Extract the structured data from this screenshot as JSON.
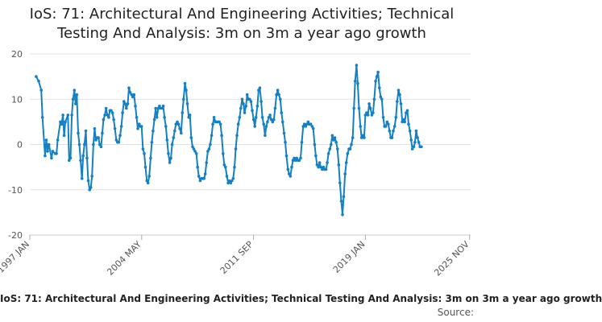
{
  "chart_data": {
    "type": "line",
    "title_line1": "IoS: 71: Architectural And Engineering Activities; Technical",
    "title_line2": "Testing And Analysis: 3m on 3m a year ago growth",
    "xlabel": "",
    "ylabel": "",
    "ylim": [
      -20,
      20
    ],
    "y_ticks": [
      -20,
      -10,
      0,
      10,
      20
    ],
    "x_range": [
      1997.0,
      2025.9
    ],
    "x_tick_labels": [
      "1997 JAN",
      "2004 MAY",
      "2011 SEP",
      "2019 JAN",
      "2025 NOV"
    ],
    "x_tick_positions": [
      1997.0,
      2004.333,
      2011.667,
      2019.0,
      2025.833
    ],
    "grid": true,
    "legend_position": "bottom",
    "series": [
      {
        "name": "IoS: 71: Architectural And Engineering Activities; Technical Testing And Analysis: 3m on 3m a year ago growth",
        "color": "#1580c2",
        "points": [
          [
            1997.42,
            15.0
          ],
          [
            1997.58,
            14.0
          ],
          [
            1997.75,
            12.0
          ],
          [
            1997.83,
            6.0
          ],
          [
            1998.0,
            -2.5
          ],
          [
            1998.08,
            1.0
          ],
          [
            1998.17,
            -1.5
          ],
          [
            1998.25,
            0.0
          ],
          [
            1998.42,
            -3.0
          ],
          [
            1998.5,
            -1.5
          ],
          [
            1998.67,
            -2.0
          ],
          [
            1998.75,
            -2.0
          ],
          [
            1998.83,
            1.0
          ],
          [
            1999.0,
            5.0
          ],
          [
            1999.08,
            4.5
          ],
          [
            1999.17,
            6.5
          ],
          [
            1999.25,
            2.0
          ],
          [
            1999.33,
            5.0
          ],
          [
            1999.5,
            6.5
          ],
          [
            1999.58,
            -3.5
          ],
          [
            1999.67,
            -3.0
          ],
          [
            1999.75,
            6.5
          ],
          [
            1999.83,
            10.0
          ],
          [
            1999.92,
            12.0
          ],
          [
            2000.0,
            9.0
          ],
          [
            2000.08,
            11.0
          ],
          [
            2000.17,
            2.5
          ],
          [
            2000.25,
            0.0
          ],
          [
            2000.33,
            -3.5
          ],
          [
            2000.42,
            -7.5
          ],
          [
            2000.5,
            -2.5
          ],
          [
            2000.58,
            0.0
          ],
          [
            2000.67,
            3.0
          ],
          [
            2000.75,
            -3.0
          ],
          [
            2000.83,
            -8.0
          ],
          [
            2000.92,
            -10.0
          ],
          [
            2001.0,
            -9.5
          ],
          [
            2001.08,
            -7.0
          ],
          [
            2001.17,
            0.0
          ],
          [
            2001.25,
            3.5
          ],
          [
            2001.33,
            1.0
          ],
          [
            2001.42,
            1.5
          ],
          [
            2001.5,
            1.5
          ],
          [
            2001.58,
            0.0
          ],
          [
            2001.67,
            -0.5
          ],
          [
            2001.75,
            2.5
          ],
          [
            2001.83,
            5.5
          ],
          [
            2001.92,
            6.5
          ],
          [
            2002.0,
            8.0
          ],
          [
            2002.08,
            6.5
          ],
          [
            2002.17,
            6.0
          ],
          [
            2002.25,
            7.5
          ],
          [
            2002.33,
            7.5
          ],
          [
            2002.42,
            7.0
          ],
          [
            2002.5,
            5.5
          ],
          [
            2002.58,
            3.5
          ],
          [
            2002.67,
            1.0
          ],
          [
            2002.75,
            0.5
          ],
          [
            2002.83,
            0.5
          ],
          [
            2002.92,
            2.0
          ],
          [
            2003.0,
            4.0
          ],
          [
            2003.08,
            7.0
          ],
          [
            2003.17,
            9.5
          ],
          [
            2003.25,
            9.0
          ],
          [
            2003.33,
            8.0
          ],
          [
            2003.42,
            9.0
          ],
          [
            2003.5,
            12.5
          ],
          [
            2003.58,
            11.5
          ],
          [
            2003.67,
            11.0
          ],
          [
            2003.75,
            10.5
          ],
          [
            2003.83,
            11.0
          ],
          [
            2003.92,
            8.5
          ],
          [
            2004.0,
            6.0
          ],
          [
            2004.08,
            3.5
          ],
          [
            2004.17,
            4.5
          ],
          [
            2004.25,
            4.0
          ],
          [
            2004.33,
            4.0
          ],
          [
            2004.42,
            -1.0
          ],
          [
            2004.5,
            -2.0
          ],
          [
            2004.58,
            -5.0
          ],
          [
            2004.67,
            -8.0
          ],
          [
            2004.75,
            -8.5
          ],
          [
            2004.83,
            -7.0
          ],
          [
            2004.92,
            -3.0
          ],
          [
            2005.0,
            0.5
          ],
          [
            2005.08,
            3.0
          ],
          [
            2005.17,
            5.5
          ],
          [
            2005.25,
            8.0
          ],
          [
            2005.33,
            6.0
          ],
          [
            2005.42,
            8.0
          ],
          [
            2005.5,
            8.5
          ],
          [
            2005.58,
            8.0
          ],
          [
            2005.67,
            8.0
          ],
          [
            2005.75,
            8.5
          ],
          [
            2005.83,
            6.0
          ],
          [
            2005.92,
            4.0
          ],
          [
            2006.0,
            1.0
          ],
          [
            2006.08,
            -2.0
          ],
          [
            2006.17,
            -4.0
          ],
          [
            2006.25,
            -3.0
          ],
          [
            2006.33,
            0.0
          ],
          [
            2006.42,
            1.5
          ],
          [
            2006.5,
            3.0
          ],
          [
            2006.58,
            4.5
          ],
          [
            2006.67,
            5.0
          ],
          [
            2006.75,
            4.5
          ],
          [
            2006.83,
            3.5
          ],
          [
            2006.92,
            2.5
          ],
          [
            2007.0,
            7.0
          ],
          [
            2007.08,
            10.0
          ],
          [
            2007.17,
            13.5
          ],
          [
            2007.25,
            12.0
          ],
          [
            2007.33,
            9.0
          ],
          [
            2007.42,
            6.0
          ],
          [
            2007.5,
            6.5
          ],
          [
            2007.58,
            1.5
          ],
          [
            2007.67,
            -0.5
          ],
          [
            2007.75,
            -1.0
          ],
          [
            2007.83,
            -1.5
          ],
          [
            2007.92,
            -2.0
          ],
          [
            2008.0,
            -5.0
          ],
          [
            2008.08,
            -7.0
          ],
          [
            2008.17,
            -8.0
          ],
          [
            2008.25,
            -7.5
          ],
          [
            2008.33,
            -7.5
          ],
          [
            2008.42,
            -7.5
          ],
          [
            2008.5,
            -6.5
          ],
          [
            2008.58,
            -4.0
          ],
          [
            2008.67,
            -1.5
          ],
          [
            2008.75,
            -1.0
          ],
          [
            2008.83,
            0.0
          ],
          [
            2008.92,
            2.0
          ],
          [
            2009.0,
            4.5
          ],
          [
            2009.08,
            6.0
          ],
          [
            2009.17,
            5.0
          ],
          [
            2009.25,
            5.0
          ],
          [
            2009.33,
            5.0
          ],
          [
            2009.42,
            5.0
          ],
          [
            2009.5,
            4.5
          ],
          [
            2009.58,
            2.0
          ],
          [
            2009.67,
            -2.0
          ],
          [
            2009.75,
            -4.5
          ],
          [
            2009.83,
            -5.0
          ],
          [
            2009.92,
            -7.0
          ],
          [
            2010.0,
            -8.5
          ],
          [
            2010.08,
            -8.0
          ],
          [
            2010.17,
            -8.5
          ],
          [
            2010.25,
            -8.0
          ],
          [
            2010.33,
            -7.5
          ],
          [
            2010.42,
            -5.0
          ],
          [
            2010.5,
            -1.0
          ],
          [
            2010.58,
            2.0
          ],
          [
            2010.67,
            4.5
          ],
          [
            2010.75,
            6.0
          ],
          [
            2010.83,
            8.0
          ],
          [
            2010.92,
            10.0
          ],
          [
            2011.0,
            9.0
          ],
          [
            2011.08,
            7.0
          ],
          [
            2011.17,
            8.5
          ],
          [
            2011.25,
            11.0
          ],
          [
            2011.33,
            10.0
          ],
          [
            2011.42,
            10.0
          ],
          [
            2011.5,
            9.5
          ],
          [
            2011.58,
            7.5
          ],
          [
            2011.67,
            5.5
          ],
          [
            2011.75,
            4.0
          ],
          [
            2011.83,
            6.0
          ],
          [
            2011.92,
            8.5
          ],
          [
            2012.0,
            12.0
          ],
          [
            2012.08,
            12.5
          ],
          [
            2012.17,
            9.5
          ],
          [
            2012.25,
            6.0
          ],
          [
            2012.33,
            4.5
          ],
          [
            2012.42,
            2.0
          ],
          [
            2012.5,
            4.0
          ],
          [
            2012.58,
            5.0
          ],
          [
            2012.67,
            6.0
          ],
          [
            2012.75,
            6.5
          ],
          [
            2012.83,
            5.5
          ],
          [
            2012.92,
            5.0
          ],
          [
            2013.0,
            5.5
          ],
          [
            2013.08,
            8.0
          ],
          [
            2013.17,
            11.0
          ],
          [
            2013.25,
            12.0
          ],
          [
            2013.33,
            11.0
          ],
          [
            2013.42,
            10.0
          ],
          [
            2013.5,
            7.0
          ],
          [
            2013.58,
            5.0
          ],
          [
            2013.67,
            2.5
          ],
          [
            2013.75,
            0.5
          ],
          [
            2013.83,
            -2.5
          ],
          [
            2013.92,
            -5.5
          ],
          [
            2014.0,
            -6.5
          ],
          [
            2014.08,
            -7.0
          ],
          [
            2014.17,
            -5.0
          ],
          [
            2014.25,
            -3.5
          ],
          [
            2014.33,
            -3.0
          ],
          [
            2014.42,
            -3.5
          ],
          [
            2014.5,
            -3.0
          ],
          [
            2014.58,
            -3.5
          ],
          [
            2014.67,
            -3.5
          ],
          [
            2014.75,
            -3.0
          ],
          [
            2014.83,
            0.5
          ],
          [
            2014.92,
            4.0
          ],
          [
            2015.0,
            4.5
          ],
          [
            2015.08,
            4.0
          ],
          [
            2015.17,
            4.5
          ],
          [
            2015.25,
            5.0
          ],
          [
            2015.33,
            4.5
          ],
          [
            2015.42,
            4.5
          ],
          [
            2015.5,
            4.0
          ],
          [
            2015.58,
            3.5
          ],
          [
            2015.67,
            0.0
          ],
          [
            2015.75,
            -2.5
          ],
          [
            2015.83,
            -4.5
          ],
          [
            2015.92,
            -5.0
          ],
          [
            2016.0,
            -4.0
          ],
          [
            2016.08,
            -5.0
          ],
          [
            2016.17,
            -5.5
          ],
          [
            2016.25,
            -5.0
          ],
          [
            2016.33,
            -5.5
          ],
          [
            2016.42,
            -5.5
          ],
          [
            2016.5,
            -4.0
          ],
          [
            2016.58,
            -2.0
          ],
          [
            2016.67,
            -1.0
          ],
          [
            2016.75,
            0.0
          ],
          [
            2016.83,
            2.0
          ],
          [
            2016.92,
            1.0
          ],
          [
            2017.0,
            1.5
          ],
          [
            2017.08,
            0.5
          ],
          [
            2017.17,
            -1.0
          ],
          [
            2017.25,
            -4.5
          ],
          [
            2017.33,
            -8.5
          ],
          [
            2017.42,
            -12.5
          ],
          [
            2017.5,
            -15.5
          ],
          [
            2017.58,
            -11.5
          ],
          [
            2017.67,
            -6.5
          ],
          [
            2017.75,
            -4.0
          ],
          [
            2017.83,
            -2.0
          ],
          [
            2017.92,
            -1.0
          ],
          [
            2018.0,
            -1.0
          ],
          [
            2018.08,
            0.0
          ],
          [
            2018.17,
            1.5
          ],
          [
            2018.25,
            8.0
          ],
          [
            2018.33,
            14.0
          ],
          [
            2018.42,
            17.5
          ],
          [
            2018.5,
            13.5
          ],
          [
            2018.58,
            8.0
          ],
          [
            2018.67,
            4.0
          ],
          [
            2018.75,
            1.5
          ],
          [
            2018.83,
            2.0
          ],
          [
            2018.92,
            1.5
          ],
          [
            2019.0,
            6.5
          ],
          [
            2019.08,
            7.0
          ],
          [
            2019.17,
            6.5
          ],
          [
            2019.25,
            9.0
          ],
          [
            2019.33,
            8.0
          ],
          [
            2019.42,
            6.5
          ],
          [
            2019.5,
            7.0
          ],
          [
            2019.58,
            10.0
          ],
          [
            2019.67,
            14.0
          ],
          [
            2019.75,
            15.0
          ],
          [
            2019.83,
            16.0
          ],
          [
            2019.92,
            12.5
          ],
          [
            2020.0,
            10.5
          ],
          [
            2020.08,
            10.0
          ],
          [
            2020.17,
            6.0
          ],
          [
            2020.25,
            4.0
          ],
          [
            2020.33,
            4.0
          ],
          [
            2020.42,
            5.0
          ],
          [
            2020.5,
            4.5
          ],
          [
            2020.58,
            3.0
          ],
          [
            2020.67,
            1.5
          ],
          [
            2020.75,
            1.5
          ],
          [
            2020.83,
            3.0
          ],
          [
            2020.92,
            4.0
          ],
          [
            2021.0,
            6.0
          ],
          [
            2021.08,
            9.5
          ],
          [
            2021.17,
            12.0
          ],
          [
            2021.25,
            11.0
          ],
          [
            2021.33,
            9.0
          ],
          [
            2021.42,
            5.0
          ],
          [
            2021.5,
            5.5
          ],
          [
            2021.58,
            5.0
          ],
          [
            2021.67,
            7.0
          ],
          [
            2021.75,
            7.5
          ],
          [
            2021.83,
            4.5
          ],
          [
            2021.92,
            3.0
          ],
          [
            2022.0,
            1.0
          ],
          [
            2022.08,
            -1.0
          ],
          [
            2022.17,
            -0.5
          ],
          [
            2022.25,
            0.5
          ],
          [
            2022.33,
            3.0
          ],
          [
            2022.42,
            1.5
          ],
          [
            2022.5,
            0.5
          ],
          [
            2022.58,
            -0.5
          ],
          [
            2022.67,
            -0.5
          ]
        ]
      }
    ]
  },
  "legend_text": "IoS: 71: Architectural And Engineering Activities; Technical Testing And Analysis: 3m on 3m a year ago growth",
  "source_text": "Source:"
}
